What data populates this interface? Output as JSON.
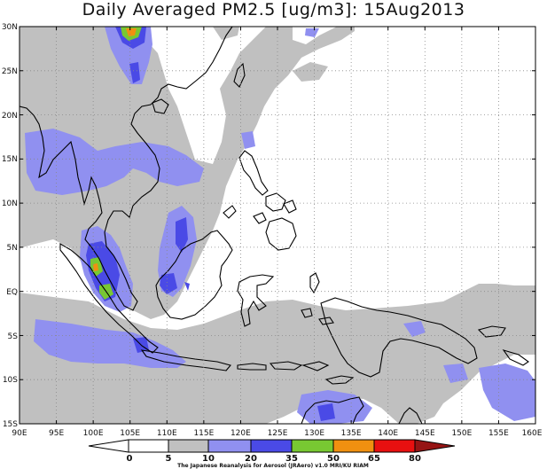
{
  "title": "Daily Averaged PM2.5 [ug/m3]: 15Aug2013",
  "credit": "The Japanese Reanalysis for Aerosol (JRAero) v1.0 MRI/KU RIAM",
  "map": {
    "lon_range": [
      90,
      160
    ],
    "lat_range": [
      -15,
      30
    ],
    "lon_ticks": [
      "90E",
      "95E",
      "100E",
      "105E",
      "110E",
      "115E",
      "120E",
      "125E",
      "130E",
      "135E",
      "140E",
      "145E",
      "150E",
      "155E",
      "160E"
    ],
    "lat_ticks": [
      "30N",
      "25N",
      "20N",
      "15N",
      "10N",
      "5N",
      "EQ",
      "5S",
      "10S",
      "15S"
    ],
    "grid": "dotted"
  },
  "colorbar": {
    "levels": [
      "0",
      "5",
      "10",
      "20",
      "35",
      "50",
      "65",
      "80"
    ],
    "colors": [
      "#ffffff",
      "#ffffff",
      "#c0c0c0",
      "#9090f0",
      "#4a4ae6",
      "#78c832",
      "#f09010",
      "#e81010",
      "#961414"
    ]
  }
}
